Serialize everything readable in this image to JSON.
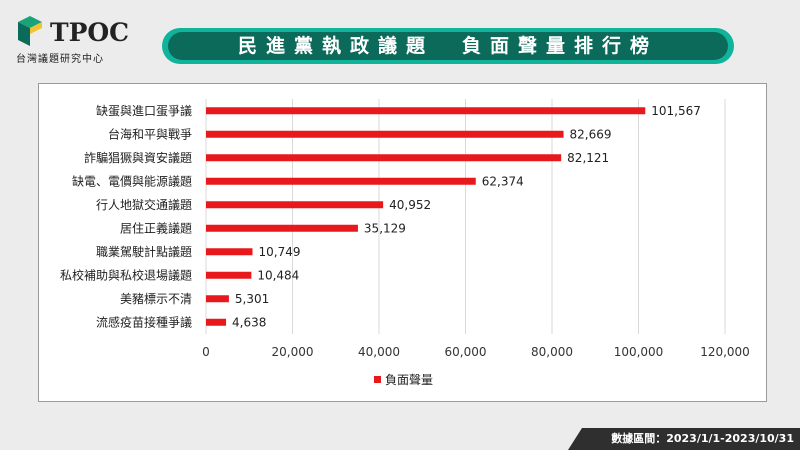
{
  "logo": {
    "text": "TPOC",
    "subtitle": "台灣議題研究中心"
  },
  "header": {
    "title": "民進黨執政議題　負面聲量排行榜"
  },
  "footer": {
    "date_range": "數據區間：2023/1/1-2023/10/31"
  },
  "colors": {
    "bar": "#e8191c",
    "banner": "#0c6a5a",
    "banner_edge": "#10b49a"
  },
  "chart_data": {
    "type": "bar",
    "orientation": "horizontal",
    "categories": [
      "缺蛋與進口蛋爭議",
      "台海和平與戰爭",
      "詐騙猖獗與資安議題",
      "缺電、電價與能源議題",
      "行人地獄交通議題",
      "居住正義議題",
      "職業駕駛計點議題",
      "私校補助與私校退場議題",
      "美豬標示不清",
      "流感疫苗接種爭議"
    ],
    "series": [
      {
        "name": "負面聲量",
        "values": [
          101567,
          82669,
          82121,
          62374,
          40952,
          35129,
          10749,
          10484,
          5301,
          4638
        ]
      }
    ],
    "value_labels": [
      "101,567",
      "82,669",
      "82,121",
      "62,374",
      "40,952",
      "35,129",
      "10,749",
      "10,484",
      "5,301",
      "4,638"
    ],
    "xlim": [
      0,
      120000
    ],
    "x_ticks": [
      0,
      20000,
      40000,
      60000,
      80000,
      100000,
      120000
    ],
    "x_tick_labels": [
      "0",
      "20,000",
      "40,000",
      "60,000",
      "80,000",
      "100,000",
      "120,000"
    ],
    "grid": true,
    "legend_position": "bottom"
  }
}
